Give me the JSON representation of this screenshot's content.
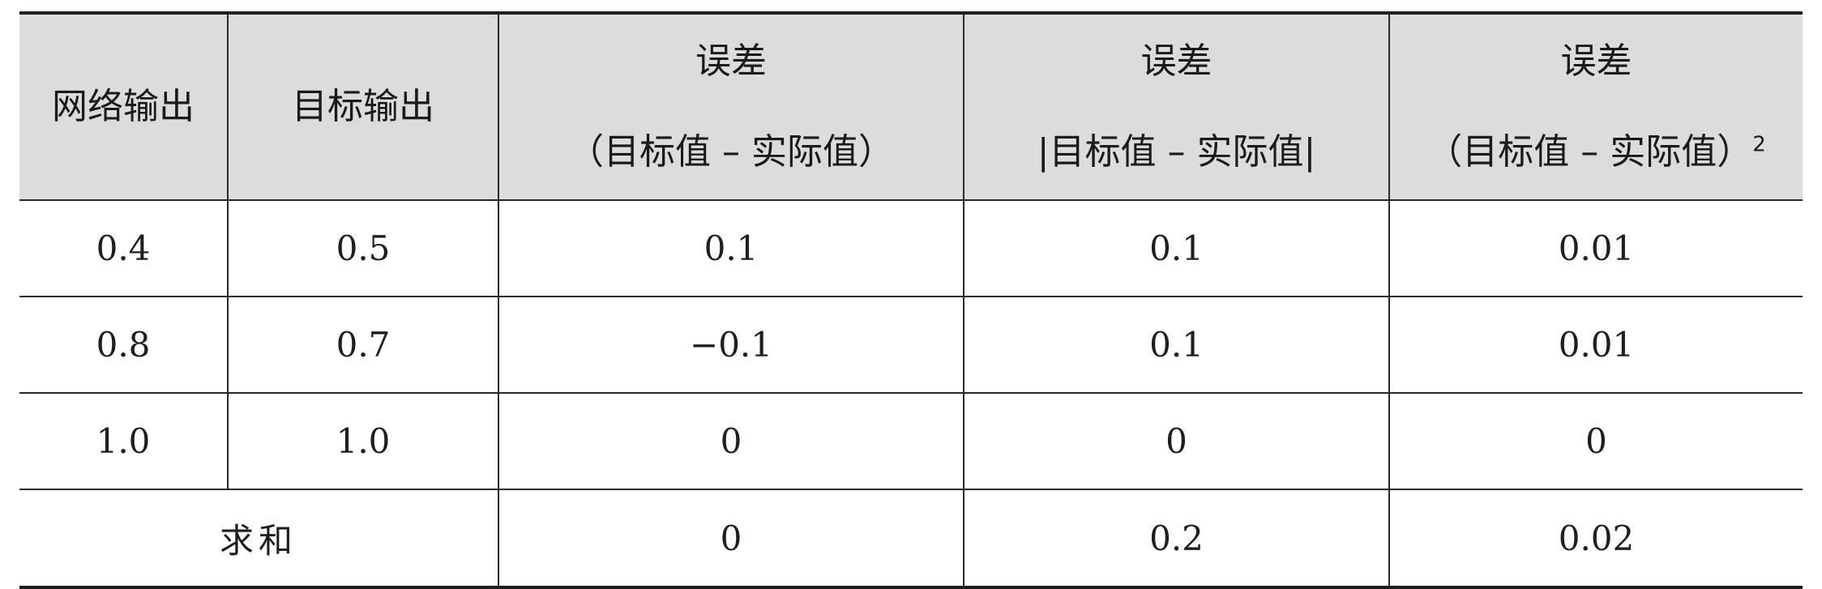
{
  "table": {
    "headers": [
      {
        "lines": [
          "网络输出"
        ]
      },
      {
        "lines": [
          "目标输出"
        ]
      },
      {
        "lines": [
          "误差",
          "（目标值 – 实际值）"
        ]
      },
      {
        "lines": [
          "误差",
          "|目标值 – 实际值|"
        ]
      },
      {
        "lines": [
          "误差",
          "（目标值 – 实际值）"
        ],
        "superscript": "2"
      }
    ],
    "rows": [
      [
        "0.4",
        "0.5",
        "0.1",
        "0.1",
        "0.01"
      ],
      [
        "0.8",
        "0.7",
        "−0.1",
        "0.1",
        "0.01"
      ],
      [
        "1.0",
        "1.0",
        "0",
        "0",
        "0"
      ]
    ],
    "sum_row": {
      "label": "求和",
      "values": [
        "0",
        "0.2",
        "0.02"
      ]
    }
  },
  "colors": {
    "header_background": "#dcdcdc",
    "rule": "#1e1e1e"
  }
}
